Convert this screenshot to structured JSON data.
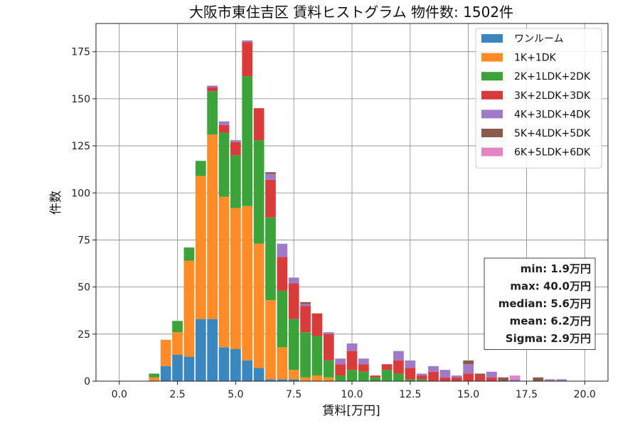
{
  "chart_data": {
    "type": "bar",
    "stacked": true,
    "title": "大阪市東住吉区 賃料ヒストグラム 物件数: 1502件",
    "xlabel": "賃料[万円]",
    "ylabel": "件数",
    "xlim": [
      -1.0,
      21.0
    ],
    "ylim": [
      0,
      190
    ],
    "xticks": [
      "0.0",
      "2.5",
      "5.0",
      "7.5",
      "10.0",
      "12.5",
      "15.0",
      "17.5",
      "20.0"
    ],
    "xtick_values": [
      0,
      2.5,
      5,
      7.5,
      10,
      12.5,
      15,
      17.5,
      20
    ],
    "yticks": [
      "0",
      "25",
      "50",
      "75",
      "100",
      "125",
      "150",
      "175"
    ],
    "ytick_values": [
      0,
      25,
      50,
      75,
      100,
      125,
      150,
      175
    ],
    "grid": true,
    "legend_position": "top-right",
    "bin_width": 0.5,
    "bins": [
      1.5,
      2.0,
      2.5,
      3.0,
      3.5,
      4.0,
      4.5,
      5.0,
      5.5,
      6.0,
      6.5,
      7.0,
      7.5,
      8.0,
      8.5,
      9.0,
      9.5,
      10.0,
      10.5,
      11.0,
      11.5,
      12.0,
      12.5,
      13.0,
      13.5,
      14.0,
      14.5,
      15.0,
      15.5,
      16.0,
      16.5,
      17.0,
      17.5,
      18.0,
      18.5,
      19.0
    ],
    "series": [
      {
        "name": "ワンルーム",
        "color": "#3a87c0",
        "values": [
          0,
          8,
          14,
          13,
          33,
          33,
          18,
          17,
          11,
          7,
          1,
          1,
          1,
          0,
          0,
          0,
          0,
          0,
          0,
          0,
          0,
          0,
          0,
          0,
          0,
          0,
          0,
          0,
          0,
          0,
          0,
          0,
          0,
          0,
          0,
          0
        ]
      },
      {
        "name": "1K+1DK",
        "color": "#ff8c26",
        "values": [
          2,
          14,
          12,
          51,
          76,
          98,
          80,
          75,
          82,
          66,
          42,
          17,
          5,
          2,
          3,
          2,
          0,
          0,
          0,
          0,
          0,
          0,
          0,
          0,
          0,
          0,
          0,
          0,
          0,
          0,
          0,
          0,
          0,
          0,
          0,
          0
        ]
      },
      {
        "name": "2K+1LDK+2DK",
        "color": "#3ba33a",
        "values": [
          2,
          0,
          6,
          7,
          8,
          23,
          34,
          28,
          69,
          55,
          44,
          30,
          27,
          24,
          21,
          9,
          3,
          6,
          5,
          2,
          6,
          4,
          1,
          1,
          0,
          0,
          0,
          0,
          0,
          0,
          0,
          0,
          0,
          0,
          0,
          0
        ]
      },
      {
        "name": "3K+2LDK+3DK",
        "color": "#d93b3b",
        "values": [
          0,
          0,
          0,
          0,
          0,
          2,
          4,
          7,
          18,
          17,
          20,
          18,
          19,
          14,
          12,
          14,
          6,
          10,
          4,
          1,
          3,
          7,
          6,
          2,
          5,
          2,
          2,
          4,
          3,
          2,
          0,
          0,
          0,
          0,
          0,
          0
        ]
      },
      {
        "name": "4K+3LDK+4DK",
        "color": "#a07ac6",
        "values": [
          0,
          0,
          0,
          0,
          0,
          1,
          2,
          1,
          1,
          0,
          3,
          7,
          3,
          1,
          0,
          1,
          3,
          4,
          3,
          0,
          0,
          5,
          4,
          1,
          3,
          4,
          1,
          5,
          0,
          3,
          0,
          1,
          0,
          0,
          1,
          1
        ]
      },
      {
        "name": "5K+4LDK+5DK",
        "color": "#8b5a4b",
        "values": [
          0,
          0,
          0,
          0,
          0,
          0,
          0,
          0,
          0,
          0,
          1,
          0,
          0,
          1,
          0,
          0,
          0,
          0,
          0,
          0,
          0,
          0,
          0,
          0,
          0,
          0,
          0,
          2,
          1,
          0,
          2,
          0,
          0,
          2,
          0,
          0
        ]
      },
      {
        "name": "6K+5LDK+6DK",
        "color": "#e584c4",
        "values": [
          0,
          0,
          0,
          0,
          0,
          0,
          0,
          0,
          0,
          0,
          0,
          0,
          0,
          0,
          0,
          0,
          0,
          0,
          0,
          0,
          0,
          0,
          0,
          0,
          0,
          0,
          0,
          0,
          0,
          0,
          0,
          2,
          0,
          0,
          0,
          0
        ]
      }
    ],
    "stats": [
      "min: 1.9万円",
      "max: 40.0万円",
      "median: 5.6万円",
      "mean: 6.2万円",
      "Sigma: 2.9万円"
    ]
  }
}
